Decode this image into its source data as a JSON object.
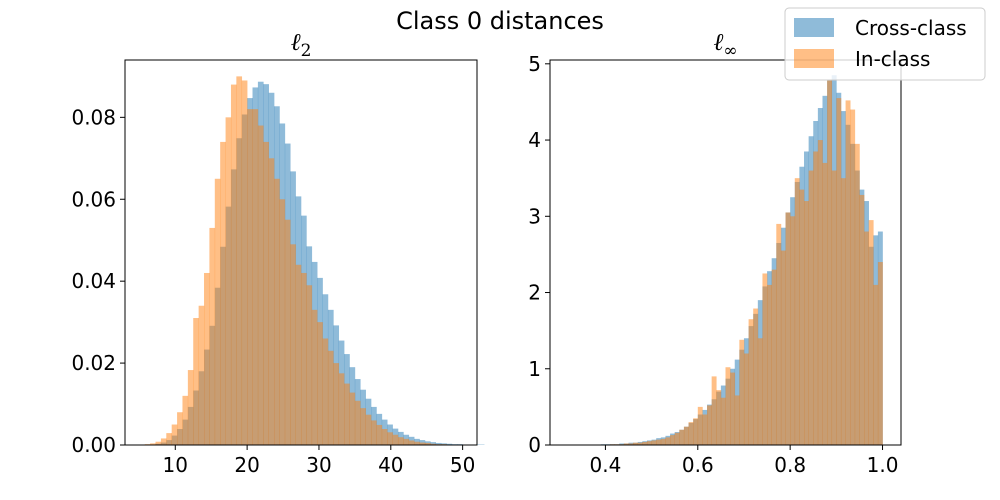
{
  "figure": {
    "title": "Class 0 distances"
  },
  "legend": {
    "placement": "top-right",
    "items": [
      {
        "label": "Cross-class",
        "color": "#1f77b4",
        "alpha": 0.5
      },
      {
        "label": "In-class",
        "color": "#ff7f0e",
        "alpha": 0.5
      }
    ]
  },
  "chart_data": [
    {
      "type": "histogram",
      "title_main": "ℓ",
      "title_sub": "2",
      "xlim": [
        3,
        52
      ],
      "ylim": [
        0,
        0.094
      ],
      "xticks": [
        10,
        20,
        30,
        40,
        50
      ],
      "xtick_labels": [
        "10",
        "20",
        "30",
        "40",
        "50"
      ],
      "yticks": [
        0,
        0.02,
        0.04,
        0.06,
        0.08
      ],
      "ytick_labels": [
        "0.00",
        "0.02",
        "0.04",
        "0.06",
        "0.08"
      ],
      "series": [
        {
          "name": "Cross-class",
          "color": "#1f77b4",
          "bins": {
            "start": 5.0,
            "width": 0.75,
            "values": [
              0.0,
              0.0,
              0.0001,
              0.0003,
              0.0006,
              0.0012,
              0.0023,
              0.0039,
              0.0062,
              0.0093,
              0.0133,
              0.018,
              0.0233,
              0.0291,
              0.0384,
              0.0484,
              0.0582,
              0.0673,
              0.0749,
              0.0807,
              0.0847,
              0.0873,
              0.0887,
              0.0881,
              0.086,
              0.0827,
              0.0785,
              0.0736,
              0.0668,
              0.0607,
              0.056,
              0.0485,
              0.0447,
              0.0408,
              0.0368,
              0.033,
              0.0292,
              0.0255,
              0.0222,
              0.019,
              0.0161,
              0.0135,
              0.0113,
              0.0093,
              0.0076,
              0.0062,
              0.005,
              0.004,
              0.0032,
              0.0025,
              0.002,
              0.0015,
              0.0012,
              0.0009,
              0.0007,
              0.0005,
              0.0004,
              0.0003,
              0.0002,
              0.0002,
              0.0001,
              0.0001,
              0.0001,
              0.0001
            ]
          }
        },
        {
          "name": "In-class",
          "color": "#ff7f0e",
          "bins": {
            "start": 5.0,
            "width": 0.75,
            "values": [
              0.0001,
              0.0002,
              0.0004,
              0.0008,
              0.0016,
              0.0029,
              0.005,
              0.008,
              0.012,
              0.0183,
              0.031,
              0.034,
              0.042,
              0.053,
              0.065,
              0.074,
              0.08,
              0.088,
              0.09,
              0.089,
              0.082,
              0.082,
              0.078,
              0.074,
              0.07,
              0.065,
              0.06,
              0.055,
              0.049,
              0.044,
              0.042,
              0.039,
              0.033,
              0.03,
              0.026,
              0.023,
              0.02,
              0.0175,
              0.015,
              0.0128,
              0.0108,
              0.009,
              0.0074,
              0.006,
              0.0049,
              0.0039,
              0.0031,
              0.0025,
              0.0019,
              0.0015,
              0.0011,
              0.0008,
              0.0006,
              0.0005,
              0.0003,
              0.0002,
              0.0002,
              0.0001,
              0.0001,
              0.0001,
              0.0,
              0.0,
              0.0,
              0.0
            ]
          }
        }
      ]
    },
    {
      "type": "histogram",
      "title_main": "ℓ",
      "title_sub": "∞",
      "xlim": [
        0.28,
        1.04
      ],
      "ylim": [
        0,
        5.05
      ],
      "xticks": [
        0.4,
        0.6,
        0.8,
        1.0
      ],
      "xtick_labels": [
        "0.4",
        "0.6",
        "0.8",
        "1.0"
      ],
      "yticks": [
        0,
        1,
        2,
        3,
        4,
        5
      ],
      "ytick_labels": [
        "0",
        "1",
        "2",
        "3",
        "4",
        "5"
      ],
      "series": [
        {
          "name": "Cross-class",
          "color": "#1f77b4",
          "bins": {
            "start": 0.3,
            "width": 0.01,
            "values": [
              0.0,
              0.0,
              0.0,
              0.0,
              0.0,
              0.0,
              0.0,
              0.0,
              0.0,
              0.01,
              0.01,
              0.01,
              0.01,
              0.02,
              0.02,
              0.03,
              0.03,
              0.04,
              0.05,
              0.06,
              0.07,
              0.09,
              0.1,
              0.12,
              0.15,
              0.17,
              0.2,
              0.24,
              0.29,
              0.34,
              0.4,
              0.46,
              0.53,
              0.6,
              0.7,
              0.78,
              0.87,
              1.0,
              1.12,
              1.25,
              1.4,
              1.56,
              1.72,
              1.9,
              2.08,
              2.28,
              2.45,
              2.65,
              2.85,
              3.05,
              3.25,
              3.45,
              3.65,
              3.85,
              4.05,
              4.25,
              4.42,
              4.58,
              4.78,
              4.85,
              4.62,
              4.38,
              4.2,
              3.95,
              3.6,
              3.35,
              3.2,
              2.6,
              2.75,
              2.8
            ]
          }
        },
        {
          "name": "In-class",
          "color": "#ff7f0e",
          "bins": {
            "start": 0.3,
            "width": 0.01,
            "values": [
              0.0,
              0.0,
              0.0,
              0.0,
              0.0,
              0.0,
              0.0,
              0.0,
              0.0,
              0.0,
              0.0,
              0.01,
              0.01,
              0.01,
              0.02,
              0.02,
              0.03,
              0.03,
              0.04,
              0.05,
              0.06,
              0.07,
              0.08,
              0.1,
              0.13,
              0.16,
              0.2,
              0.24,
              0.3,
              0.35,
              0.5,
              0.4,
              0.52,
              0.9,
              0.72,
              0.62,
              1.02,
              0.95,
              0.65,
              1.38,
              1.2,
              1.65,
              1.79,
              1.4,
              2.25,
              2.1,
              2.3,
              2.9,
              2.55,
              3.05,
              3.0,
              3.5,
              3.35,
              3.2,
              3.6,
              3.85,
              4.0,
              3.7,
              4.78,
              3.6,
              4.55,
              3.5,
              4.52,
              4.4,
              3.95,
              3.28,
              2.8,
              2.95,
              2.1,
              2.4
            ]
          }
        }
      ]
    }
  ]
}
